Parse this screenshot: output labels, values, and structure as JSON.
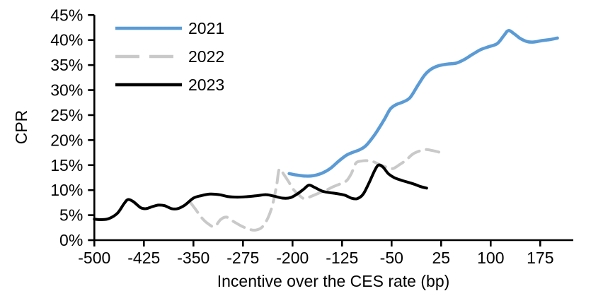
{
  "figure": {
    "ylabel": "CPR",
    "xlabel": "Incentive over the CES rate (bp)"
  },
  "chart_data": {
    "type": "line",
    "title": "",
    "xlabel": "Incentive over the CES rate (bp)",
    "ylabel": "CPR",
    "xlim": [
      -500,
      225
    ],
    "ylim": [
      0,
      45
    ],
    "grid": false,
    "legend_position": "top-left",
    "axis_color": "#000000",
    "xticks": [
      {
        "v": -500,
        "label": "-500"
      },
      {
        "v": -425,
        "label": "-425"
      },
      {
        "v": -350,
        "label": "-350"
      },
      {
        "v": -275,
        "label": "-275"
      },
      {
        "v": -200,
        "label": "-200"
      },
      {
        "v": -125,
        "label": "-125"
      },
      {
        "v": -50,
        "label": "-50"
      },
      {
        "v": 25,
        "label": "25"
      },
      {
        "v": 100,
        "label": "100"
      },
      {
        "v": 175,
        "label": "175"
      }
    ],
    "yticks": [
      {
        "v": 0,
        "label": "0%"
      },
      {
        "v": 5,
        "label": "5%"
      },
      {
        "v": 10,
        "label": "10%"
      },
      {
        "v": 15,
        "label": "15%"
      },
      {
        "v": 20,
        "label": "20%"
      },
      {
        "v": 25,
        "label": "25%"
      },
      {
        "v": 30,
        "label": "30%"
      },
      {
        "v": 35,
        "label": "35%"
      },
      {
        "v": 40,
        "label": "40%"
      },
      {
        "v": 45,
        "label": "45%"
      }
    ],
    "series": [
      {
        "name": "2021",
        "color": "#5B9BD5",
        "dash": false,
        "width": 4.5,
        "points": [
          [
            -205,
            13.3
          ],
          [
            -193,
            13.0
          ],
          [
            -180,
            12.8
          ],
          [
            -168,
            12.9
          ],
          [
            -155,
            13.4
          ],
          [
            -143,
            14.3
          ],
          [
            -130,
            15.8
          ],
          [
            -118,
            17.0
          ],
          [
            -108,
            17.6
          ],
          [
            -98,
            18.1
          ],
          [
            -88,
            19.0
          ],
          [
            -75,
            21.2
          ],
          [
            -62,
            23.9
          ],
          [
            -52,
            26.2
          ],
          [
            -43,
            27.1
          ],
          [
            -33,
            27.6
          ],
          [
            -22,
            28.5
          ],
          [
            -10,
            31.0
          ],
          [
            0,
            33.0
          ],
          [
            10,
            34.2
          ],
          [
            22,
            34.9
          ],
          [
            35,
            35.2
          ],
          [
            48,
            35.4
          ],
          [
            60,
            36.1
          ],
          [
            72,
            37.1
          ],
          [
            85,
            38.1
          ],
          [
            98,
            38.7
          ],
          [
            110,
            39.3
          ],
          [
            120,
            40.9
          ],
          [
            127,
            41.9
          ],
          [
            136,
            41.2
          ],
          [
            145,
            40.3
          ],
          [
            155,
            39.7
          ],
          [
            165,
            39.6
          ],
          [
            178,
            39.9
          ],
          [
            190,
            40.1
          ],
          [
            201,
            40.4
          ]
        ]
      },
      {
        "name": "2022",
        "color": "#C9C9C9",
        "dash": true,
        "width": 4,
        "points": [
          [
            -355,
            7.6
          ],
          [
            -347,
            6.2
          ],
          [
            -337,
            4.4
          ],
          [
            -327,
            3.2
          ],
          [
            -318,
            2.7
          ],
          [
            -309,
            4.1
          ],
          [
            -300,
            4.6
          ],
          [
            -289,
            3.7
          ],
          [
            -277,
            2.8
          ],
          [
            -266,
            2.2
          ],
          [
            -256,
            2.0
          ],
          [
            -246,
            2.6
          ],
          [
            -237,
            4.5
          ],
          [
            -230,
            7.2
          ],
          [
            -224,
            11.0
          ],
          [
            -220,
            14.2
          ],
          [
            -213,
            13.1
          ],
          [
            -206,
            11.7
          ],
          [
            -199,
            10.2
          ],
          [
            -190,
            9.0
          ],
          [
            -182,
            8.3
          ],
          [
            -171,
            8.8
          ],
          [
            -160,
            9.4
          ],
          [
            -149,
            10.0
          ],
          [
            -138,
            10.7
          ],
          [
            -127,
            11.3
          ],
          [
            -118,
            11.9
          ],
          [
            -111,
            13.3
          ],
          [
            -104,
            15.4
          ],
          [
            -96,
            15.8
          ],
          [
            -87,
            15.9
          ],
          [
            -78,
            15.7
          ],
          [
            -68,
            15.1
          ],
          [
            -58,
            14.6
          ],
          [
            -48,
            14.3
          ],
          [
            -38,
            15.1
          ],
          [
            -28,
            16.0
          ],
          [
            -18,
            17.2
          ],
          [
            -8,
            17.8
          ],
          [
            2,
            18.1
          ],
          [
            12,
            17.9
          ],
          [
            22,
            17.6
          ]
        ]
      },
      {
        "name": "2023",
        "color": "#000000",
        "dash": false,
        "width": 4,
        "points": [
          [
            -500,
            4.2
          ],
          [
            -490,
            4.1
          ],
          [
            -478,
            4.3
          ],
          [
            -465,
            5.4
          ],
          [
            -455,
            7.3
          ],
          [
            -449,
            8.1
          ],
          [
            -441,
            7.7
          ],
          [
            -430,
            6.5
          ],
          [
            -422,
            6.3
          ],
          [
            -412,
            6.7
          ],
          [
            -403,
            7.0
          ],
          [
            -394,
            6.9
          ],
          [
            -383,
            6.3
          ],
          [
            -374,
            6.3
          ],
          [
            -363,
            7.0
          ],
          [
            -350,
            8.4
          ],
          [
            -338,
            8.9
          ],
          [
            -325,
            9.2
          ],
          [
            -311,
            9.1
          ],
          [
            -297,
            8.7
          ],
          [
            -283,
            8.6
          ],
          [
            -268,
            8.7
          ],
          [
            -253,
            8.9
          ],
          [
            -240,
            9.1
          ],
          [
            -228,
            8.8
          ],
          [
            -215,
            8.4
          ],
          [
            -203,
            8.5
          ],
          [
            -192,
            9.3
          ],
          [
            -183,
            10.2
          ],
          [
            -175,
            11.0
          ],
          [
            -166,
            10.5
          ],
          [
            -155,
            9.8
          ],
          [
            -144,
            9.5
          ],
          [
            -133,
            9.3
          ],
          [
            -121,
            9.0
          ],
          [
            -111,
            8.4
          ],
          [
            -102,
            8.3
          ],
          [
            -93,
            9.2
          ],
          [
            -84,
            11.5
          ],
          [
            -76,
            13.8
          ],
          [
            -70,
            15.0
          ],
          [
            -63,
            14.6
          ],
          [
            -55,
            13.3
          ],
          [
            -46,
            12.5
          ],
          [
            -36,
            12.0
          ],
          [
            -26,
            11.6
          ],
          [
            -16,
            11.2
          ],
          [
            -6,
            10.7
          ],
          [
            3,
            10.4
          ]
        ]
      }
    ]
  }
}
